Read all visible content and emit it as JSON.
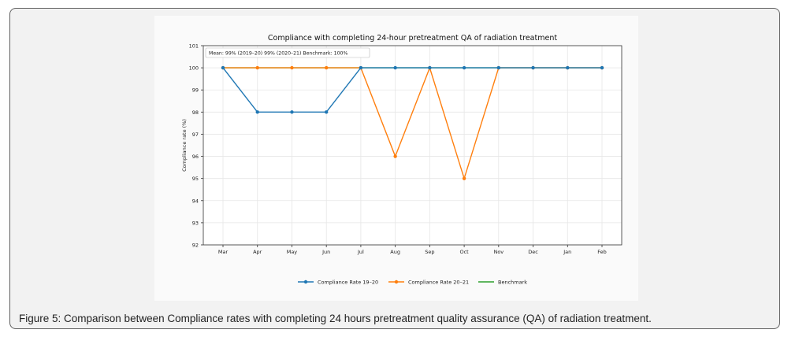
{
  "caption": "Figure 5: Comparison between Compliance rates with completing 24 hours pretreatment quality assurance (QA) of radiation treatment.",
  "chart_data": {
    "type": "line",
    "title": "Compliance with completing 24-hour pretreatment QA of radiation treatment",
    "xlabel": "",
    "ylabel": "Compliance rate (%)",
    "ylim": [
      92,
      101
    ],
    "yticks": [
      92,
      93,
      94,
      95,
      96,
      97,
      98,
      99,
      100,
      101
    ],
    "grid": true,
    "legend_position": "bottom-center",
    "annotation": "Mean: 99% (2019–20)   99% (2020–21)   Benchmark: 100%",
    "categories": [
      "Mar",
      "Apr",
      "May",
      "Jun",
      "Jul",
      "Aug",
      "Sep",
      "Oct",
      "Nov",
      "Dec",
      "Jan",
      "Feb"
    ],
    "series": [
      {
        "name": "Compliance Rate 19–20",
        "color": "#1f77b4",
        "marker": "circle",
        "values": [
          100,
          98,
          98,
          98,
          100,
          100,
          100,
          100,
          100,
          100,
          100,
          100
        ]
      },
      {
        "name": "Compliance Rate 20–21",
        "color": "#ff7f0e",
        "marker": "circle",
        "values": [
          100,
          100,
          100,
          100,
          100,
          96,
          100,
          95,
          100,
          100,
          100,
          100
        ]
      },
      {
        "name": "Benchmark",
        "color": "#2ca02c",
        "marker": "none",
        "values": [
          100,
          100,
          100,
          100,
          100,
          100,
          100,
          100,
          100,
          100,
          100,
          100
        ]
      }
    ]
  }
}
